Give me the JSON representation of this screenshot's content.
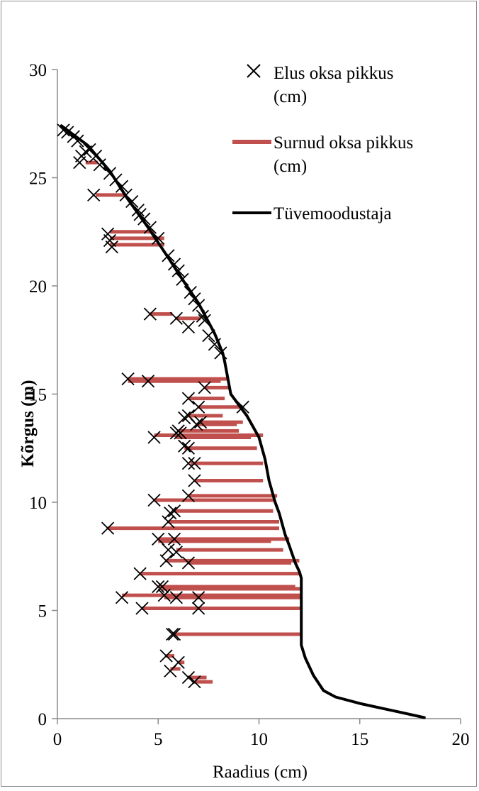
{
  "chart_data": {
    "type": "scatter",
    "xlabel": "Raadius (cm)",
    "ylabel": "Kõrgus (m)",
    "xlim": [
      0,
      20
    ],
    "ylim": [
      0,
      30
    ],
    "x_ticks": [
      "0",
      "5",
      "10",
      "15",
      "20"
    ],
    "y_ticks": [
      "0",
      "5",
      "10",
      "15",
      "20",
      "25",
      "30"
    ],
    "legend_position": "top-right",
    "grid": false,
    "colors": {
      "live": "#000000",
      "dead": "#c0504d",
      "stem": "#000000"
    },
    "series": [
      {
        "name": "Elus oksa pikkus (cm)",
        "type": "scatter",
        "marker": "x",
        "points": [
          [
            0.3,
            27.2
          ],
          [
            0.5,
            27.1
          ],
          [
            0.8,
            26.9
          ],
          [
            1.0,
            26.7
          ],
          [
            1.4,
            26.2
          ],
          [
            1.6,
            26.3
          ],
          [
            1.2,
            26.0
          ],
          [
            1.9,
            26.0
          ],
          [
            1.1,
            25.7
          ],
          [
            2.1,
            25.6
          ],
          [
            2.6,
            25.2
          ],
          [
            2.9,
            24.9
          ],
          [
            3.2,
            24.6
          ],
          [
            1.8,
            24.2
          ],
          [
            3.4,
            24.2
          ],
          [
            3.7,
            23.9
          ],
          [
            4.0,
            23.5
          ],
          [
            4.1,
            23.3
          ],
          [
            4.3,
            23.1
          ],
          [
            4.6,
            22.7
          ],
          [
            2.5,
            22.4
          ],
          [
            5.0,
            22.2
          ],
          [
            2.6,
            22.1
          ],
          [
            2.7,
            21.8
          ],
          [
            5.5,
            21.4
          ],
          [
            5.8,
            21.0
          ],
          [
            6.0,
            20.7
          ],
          [
            6.2,
            20.3
          ],
          [
            6.6,
            19.7
          ],
          [
            6.8,
            19.4
          ],
          [
            7.0,
            19.1
          ],
          [
            4.6,
            18.7
          ],
          [
            7.2,
            18.6
          ],
          [
            5.9,
            18.5
          ],
          [
            7.3,
            18.4
          ],
          [
            6.5,
            18.1
          ],
          [
            7.5,
            17.7
          ],
          [
            7.8,
            17.3
          ],
          [
            8.1,
            16.9
          ],
          [
            3.5,
            15.7
          ],
          [
            4.5,
            15.6
          ],
          [
            7.3,
            15.3
          ],
          [
            6.5,
            14.8
          ],
          [
            7.0,
            14.4
          ],
          [
            9.2,
            14.4
          ],
          [
            6.5,
            14.0
          ],
          [
            6.3,
            13.9
          ],
          [
            7.1,
            13.7
          ],
          [
            6.9,
            13.6
          ],
          [
            6.0,
            13.3
          ],
          [
            6.1,
            13.2
          ],
          [
            5.9,
            13.2
          ],
          [
            4.8,
            13.0
          ],
          [
            6.3,
            12.6
          ],
          [
            6.5,
            12.5
          ],
          [
            6.5,
            11.8
          ],
          [
            6.8,
            11.8
          ],
          [
            6.8,
            11.0
          ],
          [
            6.5,
            10.3
          ],
          [
            4.8,
            10.1
          ],
          [
            5.8,
            9.6
          ],
          [
            5.6,
            9.5
          ],
          [
            5.5,
            9.1
          ],
          [
            2.5,
            8.8
          ],
          [
            5.0,
            8.3
          ],
          [
            5.8,
            8.3
          ],
          [
            5.5,
            7.8
          ],
          [
            5.9,
            7.7
          ],
          [
            5.4,
            7.3
          ],
          [
            6.5,
            7.2
          ],
          [
            4.1,
            6.7
          ],
          [
            5.0,
            6.1
          ],
          [
            5.2,
            6.1
          ],
          [
            3.2,
            5.6
          ],
          [
            5.3,
            5.7
          ],
          [
            5.9,
            5.6
          ],
          [
            7.0,
            5.6
          ],
          [
            4.2,
            5.1
          ],
          [
            7.0,
            5.1
          ],
          [
            5.7,
            3.9
          ],
          [
            5.8,
            3.9
          ],
          [
            5.4,
            2.9
          ],
          [
            6.0,
            2.6
          ],
          [
            5.6,
            2.2
          ],
          [
            6.5,
            1.9
          ],
          [
            6.8,
            1.7
          ]
        ]
      },
      {
        "name": "Surnud oksa pikkus (cm)",
        "type": "horizontal-bar",
        "segments": [
          [
            1.4,
            2.0,
            25.7
          ],
          [
            1.9,
            3.4,
            24.2
          ],
          [
            2.6,
            4.8,
            22.5
          ],
          [
            2.6,
            5.3,
            22.2
          ],
          [
            2.6,
            5.3,
            21.9
          ],
          [
            4.6,
            5.7,
            18.7
          ],
          [
            5.9,
            7.1,
            18.5
          ],
          [
            3.5,
            8.5,
            15.7
          ],
          [
            3.5,
            8.1,
            15.6
          ],
          [
            7.3,
            8.5,
            15.3
          ],
          [
            6.5,
            8.3,
            14.8
          ],
          [
            7.0,
            9.2,
            14.4
          ],
          [
            6.5,
            8.2,
            14.0
          ],
          [
            7.1,
            9.2,
            13.7
          ],
          [
            6.9,
            8.9,
            13.6
          ],
          [
            6.0,
            9.0,
            13.3
          ],
          [
            4.8,
            10.2,
            13.1
          ],
          [
            5.9,
            9.6,
            13.0
          ],
          [
            6.3,
            9.9,
            12.5
          ],
          [
            6.6,
            10.2,
            11.8
          ],
          [
            6.8,
            10.2,
            11.0
          ],
          [
            6.5,
            10.9,
            10.3
          ],
          [
            4.8,
            10.8,
            10.1
          ],
          [
            5.8,
            10.7,
            9.6
          ],
          [
            5.5,
            11.0,
            9.1
          ],
          [
            2.5,
            11.0,
            8.8
          ],
          [
            5.0,
            11.5,
            8.3
          ],
          [
            5.0,
            10.6,
            8.2
          ],
          [
            5.9,
            11.2,
            7.8
          ],
          [
            5.4,
            12.0,
            7.3
          ],
          [
            6.5,
            11.6,
            7.2
          ],
          [
            4.1,
            12.1,
            6.7
          ],
          [
            5.0,
            11.8,
            6.1
          ],
          [
            5.2,
            12.1,
            6.0
          ],
          [
            3.2,
            12.1,
            5.7
          ],
          [
            5.3,
            12.1,
            5.6
          ],
          [
            4.2,
            12.1,
            5.1
          ],
          [
            5.8,
            12.1,
            3.9
          ],
          [
            5.4,
            5.8,
            2.9
          ],
          [
            6.0,
            6.3,
            2.6
          ],
          [
            5.6,
            6.1,
            2.3
          ],
          [
            6.5,
            7.4,
            1.9
          ],
          [
            6.8,
            7.7,
            1.7
          ]
        ]
      },
      {
        "name": "Tüvemoodustaja",
        "type": "line",
        "points": [
          [
            0.2,
            27.4
          ],
          [
            1.5,
            26.5
          ],
          [
            2.6,
            25.3
          ],
          [
            3.5,
            24.0
          ],
          [
            4.5,
            22.7
          ],
          [
            5.5,
            21.3
          ],
          [
            6.2,
            20.3
          ],
          [
            7.0,
            19.2
          ],
          [
            7.8,
            17.8
          ],
          [
            8.2,
            16.9
          ],
          [
            8.3,
            16.5
          ],
          [
            8.6,
            15.0
          ],
          [
            9.4,
            14.0
          ],
          [
            10.0,
            13.0
          ],
          [
            10.3,
            12.0
          ],
          [
            10.5,
            11.0
          ],
          [
            10.8,
            10.0
          ],
          [
            11.0,
            9.5
          ],
          [
            11.3,
            8.5
          ],
          [
            11.5,
            8.0
          ],
          [
            11.8,
            7.2
          ],
          [
            12.0,
            6.8
          ],
          [
            12.1,
            6.5
          ],
          [
            12.1,
            6.0
          ],
          [
            12.1,
            5.0
          ],
          [
            12.1,
            4.0
          ],
          [
            12.1,
            3.4
          ],
          [
            12.3,
            2.8
          ],
          [
            12.7,
            2.0
          ],
          [
            13.2,
            1.3
          ],
          [
            13.8,
            1.0
          ],
          [
            15.0,
            0.7
          ],
          [
            16.0,
            0.5
          ],
          [
            17.0,
            0.3
          ],
          [
            18.2,
            0.05
          ]
        ]
      }
    ]
  }
}
